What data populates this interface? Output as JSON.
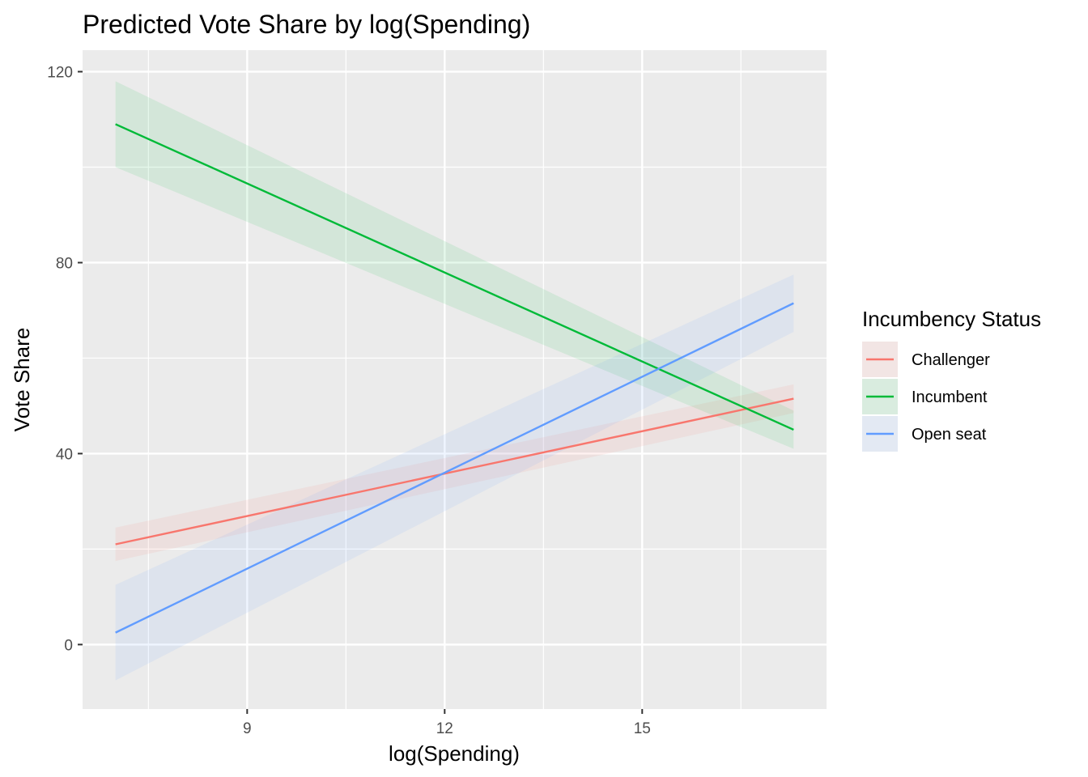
{
  "chart_data": {
    "type": "line",
    "title": "Predicted Vote Share by log(Spending)",
    "xlabel": "log(Spending)",
    "ylabel": "Vote Share",
    "xlim": [
      6.5,
      17.8
    ],
    "ylim": [
      -13.5,
      124.5
    ],
    "xticks": [
      9,
      12,
      15
    ],
    "xticks_minor": [
      7.5,
      10.5,
      13.5,
      16.5
    ],
    "yticks": [
      0,
      40,
      80,
      120
    ],
    "yticks_minor": [
      20,
      60,
      100
    ],
    "grid": true,
    "legend": {
      "title": "Incumbency Status",
      "position": "right"
    },
    "series": [
      {
        "name": "Challenger",
        "color": "#F8766D",
        "x": [
          7,
          17.3
        ],
        "y": [
          21.0,
          51.5
        ],
        "ymin": [
          17.5,
          48.5
        ],
        "ymax": [
          24.5,
          54.5
        ]
      },
      {
        "name": "Incumbent",
        "color": "#00BA38",
        "x": [
          7,
          17.3
        ],
        "y": [
          109.0,
          45.0
        ],
        "ymin": [
          100.0,
          41.0
        ],
        "ymax": [
          118.0,
          49.0
        ]
      },
      {
        "name": "Open seat",
        "color": "#619CFF",
        "x": [
          7,
          17.3
        ],
        "y": [
          2.5,
          71.5
        ],
        "ymin": [
          -7.5,
          65.5
        ],
        "ymax": [
          12.5,
          77.5
        ]
      }
    ]
  }
}
